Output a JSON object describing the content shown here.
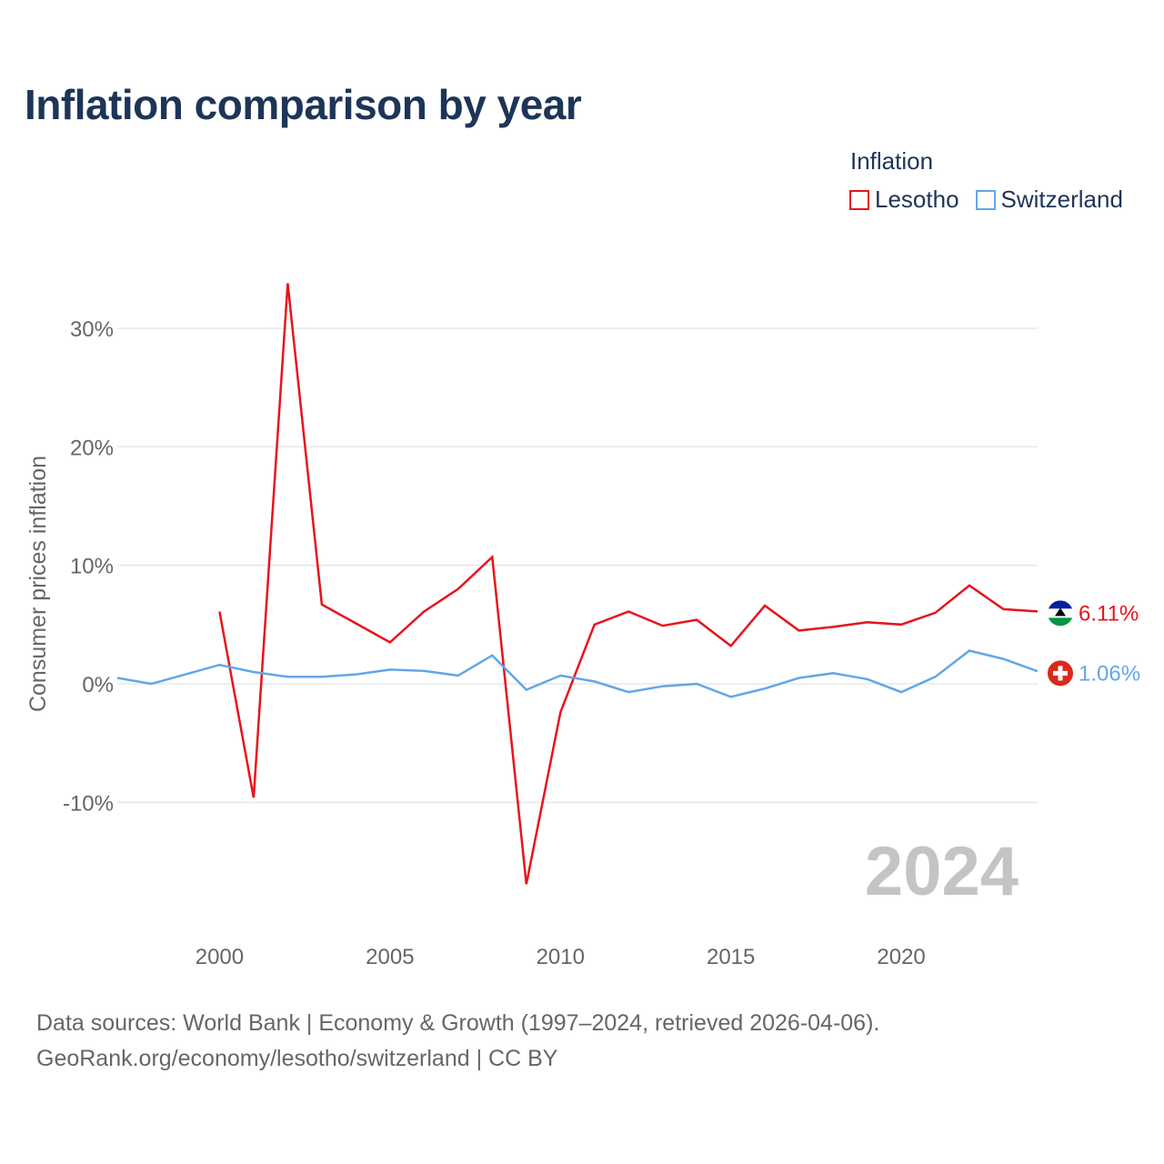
{
  "title": "Inflation comparison by year",
  "legend": {
    "title": "Inflation",
    "items": [
      {
        "label": "Lesotho",
        "color": "#e8131c"
      },
      {
        "label": "Switzerland",
        "color": "#63a6e8"
      }
    ]
  },
  "chart_data": {
    "type": "line",
    "ylabel": "Consumer prices inflation",
    "xlabel": "",
    "xlim": [
      1997,
      2024
    ],
    "ylim": [
      -19,
      36
    ],
    "x_ticks": [
      2000,
      2005,
      2010,
      2015,
      2020
    ],
    "y_ticks": [
      {
        "value": 30,
        "label": "30%"
      },
      {
        "value": 20,
        "label": "20%"
      },
      {
        "value": 10,
        "label": "10%"
      },
      {
        "value": 0,
        "label": "0%"
      },
      {
        "value": -10,
        "label": "-10%"
      }
    ],
    "year_watermark": "2024",
    "series": [
      {
        "name": "Lesotho",
        "color": "#e8131c",
        "end_label": "6.11%",
        "x": [
          2000,
          2001,
          2002,
          2003,
          2004,
          2005,
          2006,
          2007,
          2008,
          2009,
          2010,
          2011,
          2012,
          2013,
          2014,
          2015,
          2016,
          2017,
          2018,
          2019,
          2020,
          2021,
          2022,
          2023,
          2024
        ],
        "values": [
          6.1,
          -9.6,
          33.8,
          6.7,
          5.1,
          3.5,
          6.1,
          8.0,
          10.7,
          -16.9,
          -2.4,
          5.0,
          6.1,
          4.9,
          5.4,
          3.2,
          6.6,
          4.5,
          4.8,
          5.2,
          5.0,
          6.0,
          8.3,
          6.3,
          6.11
        ]
      },
      {
        "name": "Switzerland",
        "color": "#63a6e8",
        "end_label": "1.06%",
        "x": [
          1997,
          1998,
          1999,
          2000,
          2001,
          2002,
          2003,
          2004,
          2005,
          2006,
          2007,
          2008,
          2009,
          2010,
          2011,
          2012,
          2013,
          2014,
          2015,
          2016,
          2017,
          2018,
          2019,
          2020,
          2021,
          2022,
          2023,
          2024
        ],
        "values": [
          0.5,
          0.0,
          0.8,
          1.6,
          1.0,
          0.6,
          0.6,
          0.8,
          1.2,
          1.1,
          0.7,
          2.4,
          -0.5,
          0.7,
          0.2,
          -0.7,
          -0.2,
          0.0,
          -1.1,
          -0.4,
          0.5,
          0.9,
          0.4,
          -0.7,
          0.6,
          2.8,
          2.1,
          1.06
        ]
      }
    ]
  },
  "source": {
    "line1": "Data sources: World Bank | Economy & Growth (1997–2024, retrieved 2026-04-06).",
    "line2": "GeoRank.org/economy/lesotho/switzerland | CC BY"
  },
  "flags": {
    "lesotho": {
      "top": "#00209f",
      "middle": "#ffffff",
      "bottom": "#009543",
      "hat": "#000000"
    },
    "switzerland": {
      "field": "#da291c",
      "cross": "#ffffff"
    }
  }
}
